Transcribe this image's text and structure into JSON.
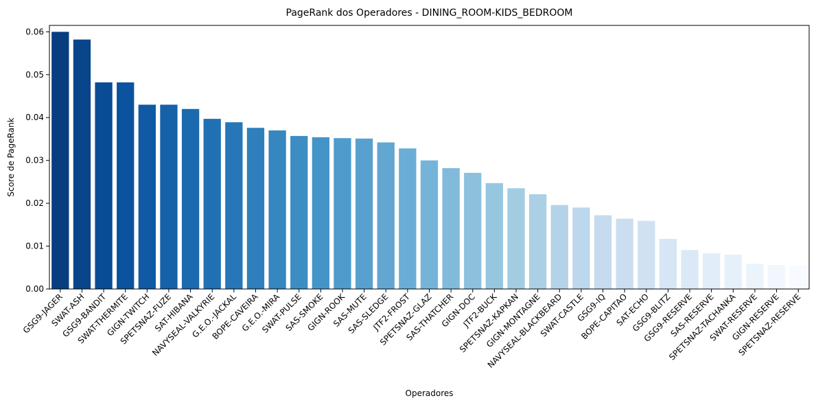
{
  "chart_data": {
    "type": "bar",
    "title": "PageRank dos Operadores - DINING_ROOM-KIDS_BEDROOM",
    "xlabel": "Operadores",
    "ylabel": "Score de PageRank",
    "ylim": [
      0,
      0.0615
    ],
    "yticks": [
      "0.00",
      "0.01",
      "0.02",
      "0.03",
      "0.04",
      "0.05",
      "0.06"
    ],
    "grid": false,
    "palette": "Blues (dark to light)",
    "categories": [
      "GSG9-JAGER",
      "SWAT-ASH",
      "GSG9-BANDIT",
      "SWAT-THERMITE",
      "GIGN-TWITCH",
      "SPETSNAZ-FUZE",
      "SAT-HIBANA",
      "NAVYSEAL-VALKYRIE",
      "G.E.O.-JACKAL",
      "BOPE-CAVEIRA",
      "G.E.O.-MIRA",
      "SWAT-PULSE",
      "SAS-SMOKE",
      "GIGN-ROOK",
      "SAS-MUTE",
      "SAS-SLEDGE",
      "JTF2-FROST",
      "SPETSNAZ-GLAZ",
      "SAS-THATCHER",
      "GIGN-DOC",
      "JTF2-BUCK",
      "SPETSNAZ-KAPKAN",
      "GIGN-MONTAGNE",
      "NAVYSEAL-BLACKBEARD",
      "SWAT-CASTLE",
      "GSG9-IQ",
      "BOPE-CAPITAO",
      "SAT-ECHO",
      "GSG9-BLITZ",
      "GSG9-RESERVE",
      "SAS-RESERVE",
      "SPETSNAZ-TACHANKA",
      "SWAT-RESERVE",
      "GIGN-RESERVE",
      "SPETSNAZ-RESERVE"
    ],
    "values": [
      0.06,
      0.0582,
      0.0482,
      0.0482,
      0.043,
      0.043,
      0.042,
      0.0397,
      0.0389,
      0.0376,
      0.037,
      0.0357,
      0.0354,
      0.0352,
      0.0351,
      0.0342,
      0.0328,
      0.03,
      0.0282,
      0.0271,
      0.0247,
      0.0235,
      0.0221,
      0.0196,
      0.019,
      0.0172,
      0.0164,
      0.0159,
      0.0117,
      0.0091,
      0.0083,
      0.008,
      0.0059,
      0.0056,
      0.0055
    ]
  }
}
